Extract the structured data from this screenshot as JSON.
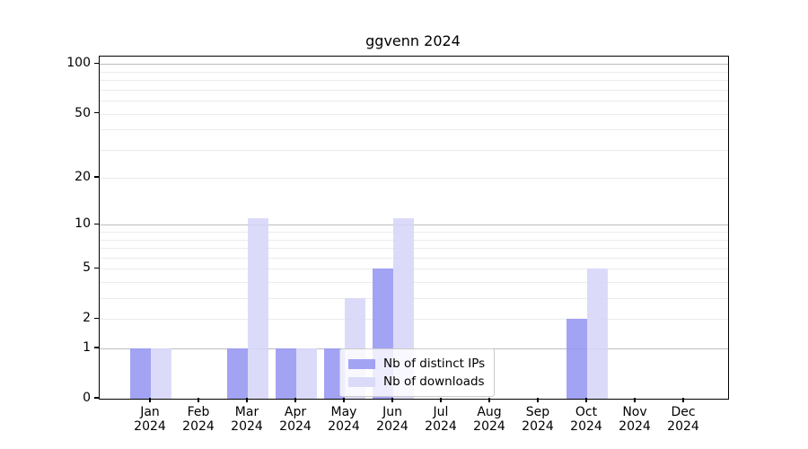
{
  "title": "ggvenn 2024",
  "colors": {
    "bar_distinct_ips": "#a9a9f5",
    "bar_downloads": "#dbdbf8",
    "grid_major": "#bdbdbd",
    "grid_minor": "#ebebeb",
    "axis": "#000000",
    "legend_border": "#cccccc"
  },
  "chart_data": {
    "type": "bar",
    "title": "ggvenn 2024",
    "categories": [
      "Jan",
      "Feb",
      "Mar",
      "Apr",
      "May",
      "Jun",
      "Jul",
      "Aug",
      "Sep",
      "Oct",
      "Nov",
      "Dec"
    ],
    "year": "2024",
    "series": [
      {
        "name": "Nb of distinct IPs",
        "color": "#a9a9f5",
        "values": [
          1,
          0,
          1,
          1,
          1,
          5,
          0,
          0,
          0,
          2,
          0,
          0
        ]
      },
      {
        "name": "Nb of downloads",
        "color": "#dbdbf8",
        "values": [
          1,
          0,
          11,
          1,
          3,
          11,
          0,
          0,
          0,
          5,
          0,
          0
        ]
      }
    ],
    "xlabel": "",
    "ylabel": "",
    "yscale": "log1p",
    "ylim": [
      0,
      111
    ],
    "ytick_labels": [
      0,
      1,
      2,
      5,
      10,
      20,
      50,
      100
    ],
    "grid_major_values": [
      1,
      10,
      100
    ],
    "grid_minor_values": [
      2,
      3,
      4,
      5,
      6,
      7,
      8,
      9,
      20,
      30,
      40,
      50,
      60,
      70,
      80,
      90
    ],
    "grid": true,
    "legend_position": "lower center-left inside plot"
  }
}
